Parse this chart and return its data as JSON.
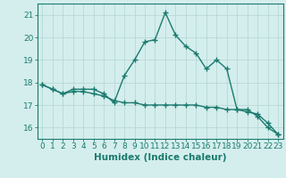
{
  "title": "",
  "xlabel": "Humidex (Indice chaleur)",
  "background_color": "#d4eeed",
  "line_color": "#1a7a6e",
  "grid_color": "#b8d8d5",
  "x_line1": [
    0,
    1,
    2,
    3,
    4,
    5,
    6,
    7,
    8,
    9,
    10,
    11,
    12,
    13,
    14,
    15,
    16,
    17,
    18,
    19,
    20,
    21,
    22,
    23
  ],
  "y_line1": [
    17.9,
    17.7,
    17.5,
    17.7,
    17.7,
    17.7,
    17.5,
    17.1,
    18.3,
    19.0,
    19.8,
    19.9,
    21.1,
    20.1,
    19.6,
    19.3,
    18.6,
    19.0,
    18.6,
    16.8,
    16.8,
    16.5,
    16.0,
    15.7
  ],
  "x_line2": [
    0,
    1,
    2,
    3,
    4,
    5,
    6,
    7,
    8,
    9,
    10,
    11,
    12,
    13,
    14,
    15,
    16,
    17,
    18,
    19,
    20,
    21,
    22,
    23
  ],
  "y_line2": [
    17.9,
    17.7,
    17.5,
    17.6,
    17.6,
    17.5,
    17.4,
    17.2,
    17.1,
    17.1,
    17.0,
    17.0,
    17.0,
    17.0,
    17.0,
    17.0,
    16.9,
    16.9,
    16.8,
    16.8,
    16.7,
    16.6,
    16.2,
    15.7
  ],
  "ylim": [
    15.5,
    21.5
  ],
  "yticks": [
    16,
    17,
    18,
    19,
    20,
    21
  ],
  "xlim": [
    -0.5,
    23.5
  ],
  "xticks": [
    0,
    1,
    2,
    3,
    4,
    5,
    6,
    7,
    8,
    9,
    10,
    11,
    12,
    13,
    14,
    15,
    16,
    17,
    18,
    19,
    20,
    21,
    22,
    23
  ],
  "marker": "+",
  "markersize": 4,
  "linewidth": 1.0,
  "tick_fontsize": 6.5,
  "xlabel_fontsize": 7.5
}
